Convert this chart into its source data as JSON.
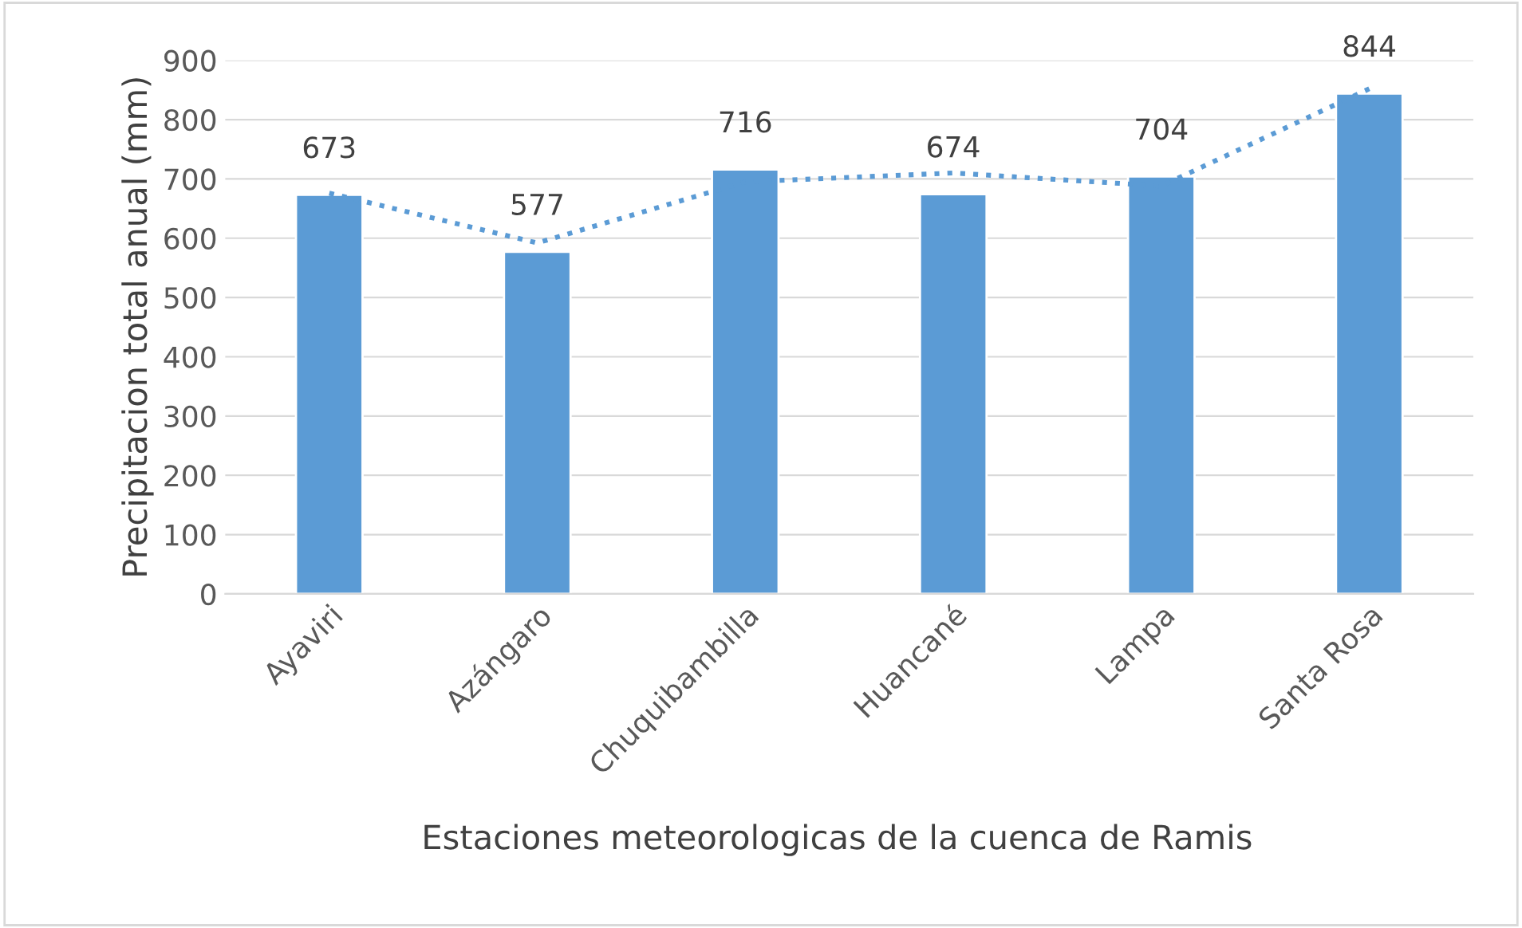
{
  "chart_data": {
    "type": "bar",
    "xlabel": "Estaciones meteorologicas de la cuenca de Ramis",
    "ylabel": "Precipitacion total anual (mm)",
    "categories": [
      "Ayaviri",
      "Azángaro",
      "Chuquibambilla",
      "Huancané",
      "Lampa",
      "Santa Rosa"
    ],
    "series": [
      {
        "color": "#5b9bd5",
        "values": [
          673,
          577,
          716,
          674,
          704,
          844
        ],
        "value_labels": [
          "673",
          "577",
          "716",
          "674",
          "704",
          "844"
        ]
      },
      {
        "type": "line",
        "color": "#5b9bd5",
        "line_style": "dotted",
        "values": [
          676,
          592,
          695,
          710,
          688,
          852
        ]
      }
    ],
    "ylim": [
      0,
      900
    ],
    "yticks": [
      0,
      100,
      200,
      300,
      400,
      500,
      600,
      700,
      800,
      900
    ],
    "grid": "y"
  }
}
